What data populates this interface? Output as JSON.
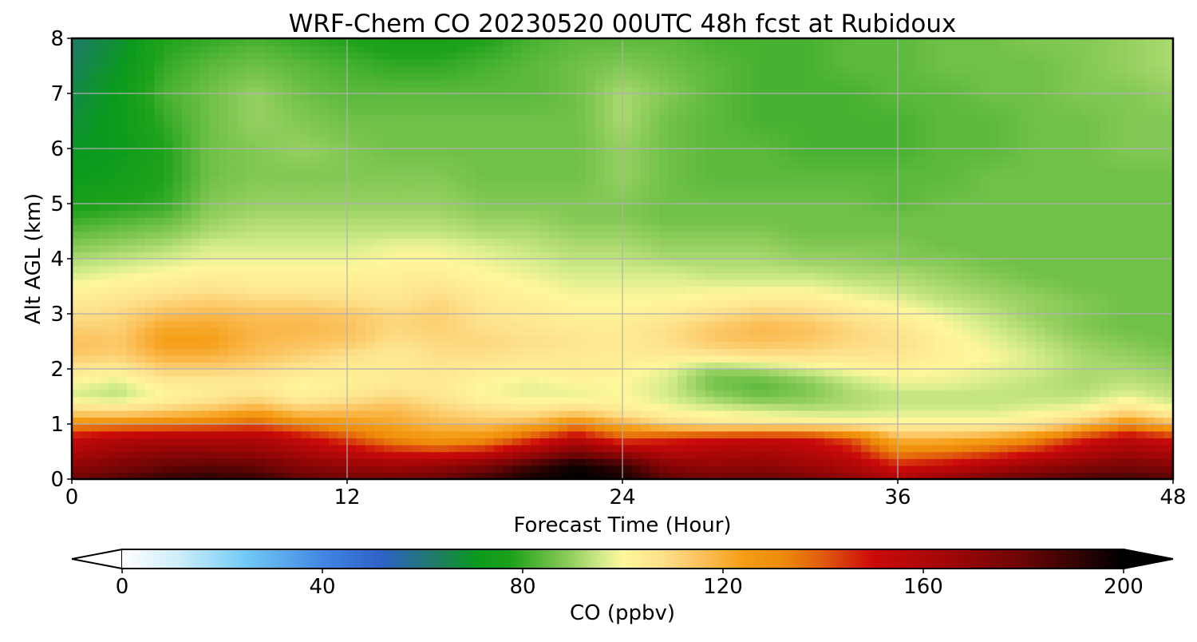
{
  "chart_data": {
    "type": "heatmap",
    "title": "WRF-Chem CO  20230520 00UTC 48h fcst at Rubidoux",
    "xlabel": "Forecast Time (Hour)",
    "ylabel": "Alt AGL (km)",
    "xlim": [
      0,
      48
    ],
    "ylim": [
      0,
      8
    ],
    "x_ticks": [
      0,
      12,
      24,
      36,
      48
    ],
    "y_ticks": [
      0,
      1,
      2,
      3,
      4,
      5,
      6,
      7,
      8
    ],
    "grid": true,
    "colorbar": {
      "label": "CO  (ppbv)",
      "range": [
        0,
        200
      ],
      "ticks": [
        0,
        40,
        80,
        120,
        160,
        200
      ],
      "extend": "both",
      "orientation": "horizontal",
      "stops": [
        {
          "v": 0,
          "c": "#ffffff"
        },
        {
          "v": 12,
          "c": "#c9ecfa"
        },
        {
          "v": 25,
          "c": "#6fc8f5"
        },
        {
          "v": 42,
          "c": "#3d7fe0"
        },
        {
          "v": 52,
          "c": "#2f62c4"
        },
        {
          "v": 62,
          "c": "#1f7a6a"
        },
        {
          "v": 71,
          "c": "#0a9a1e"
        },
        {
          "v": 78,
          "c": "#1ea21a"
        },
        {
          "v": 84,
          "c": "#5cb93c"
        },
        {
          "v": 90,
          "c": "#96d060"
        },
        {
          "v": 96,
          "c": "#d4ec8c"
        },
        {
          "v": 100,
          "c": "#fff79a"
        },
        {
          "v": 108,
          "c": "#fde08a"
        },
        {
          "v": 116,
          "c": "#fbc05a"
        },
        {
          "v": 124,
          "c": "#f59d16"
        },
        {
          "v": 132,
          "c": "#ee8a0a"
        },
        {
          "v": 140,
          "c": "#e05a0c"
        },
        {
          "v": 150,
          "c": "#cc0a0a"
        },
        {
          "v": 165,
          "c": "#a00606"
        },
        {
          "v": 180,
          "c": "#6a0505"
        },
        {
          "v": 192,
          "c": "#2a0202"
        },
        {
          "v": 200,
          "c": "#000000"
        }
      ]
    },
    "x": [
      0,
      2,
      4,
      6,
      8,
      10,
      12,
      14,
      16,
      18,
      20,
      22,
      24,
      26,
      28,
      30,
      32,
      34,
      36,
      38,
      40,
      42,
      44,
      46,
      48
    ],
    "y": [
      0,
      0.25,
      0.5,
      0.75,
      1,
      1.25,
      1.5,
      1.75,
      2,
      2.25,
      2.5,
      2.75,
      3,
      3.25,
      3.5,
      3.75,
      4,
      4.25,
      4.5,
      4.75,
      5,
      5.5,
      6,
      6.5,
      7,
      7.5,
      8
    ],
    "z": [
      [
        178,
        184,
        190,
        192,
        190,
        182,
        178,
        176,
        180,
        188,
        196,
        200,
        196,
        182,
        178,
        180,
        176,
        170,
        160,
        168,
        176,
        182,
        186,
        188,
        184
      ],
      [
        170,
        175,
        180,
        182,
        180,
        172,
        168,
        165,
        168,
        175,
        188,
        198,
        190,
        172,
        168,
        170,
        166,
        160,
        148,
        152,
        160,
        166,
        172,
        176,
        172
      ],
      [
        160,
        166,
        170,
        170,
        168,
        162,
        155,
        148,
        145,
        150,
        162,
        175,
        165,
        158,
        160,
        162,
        158,
        150,
        132,
        135,
        140,
        148,
        158,
        165,
        160
      ],
      [
        152,
        158,
        160,
        160,
        160,
        152,
        142,
        130,
        125,
        128,
        142,
        155,
        140,
        145,
        150,
        152,
        150,
        140,
        118,
        118,
        122,
        130,
        145,
        155,
        148
      ],
      [
        130,
        132,
        134,
        136,
        140,
        132,
        126,
        122,
        118,
        116,
        120,
        132,
        120,
        110,
        105,
        105,
        105,
        104,
        102,
        102,
        102,
        105,
        115,
        130,
        118
      ],
      [
        110,
        108,
        112,
        116,
        122,
        114,
        116,
        118,
        112,
        108,
        106,
        110,
        104,
        100,
        98,
        96,
        94,
        94,
        96,
        96,
        96,
        98,
        100,
        108,
        100
      ],
      [
        96,
        94,
        100,
        104,
        108,
        102,
        106,
        110,
        106,
        100,
        98,
        98,
        100,
        96,
        90,
        86,
        88,
        92,
        94,
        94,
        94,
        94,
        94,
        98,
        94
      ],
      [
        100,
        96,
        104,
        104,
        104,
        100,
        102,
        104,
        104,
        100,
        98,
        100,
        100,
        96,
        86,
        84,
        88,
        94,
        98,
        98,
        96,
        94,
        92,
        94,
        92
      ],
      [
        106,
        104,
        112,
        112,
        110,
        106,
        104,
        104,
        106,
        104,
        102,
        104,
        102,
        98,
        90,
        92,
        96,
        100,
        102,
        100,
        98,
        96,
        92,
        92,
        90
      ],
      [
        114,
        112,
        120,
        120,
        116,
        112,
        108,
        104,
        108,
        108,
        106,
        104,
        104,
        104,
        106,
        108,
        108,
        106,
        106,
        102,
        100,
        96,
        92,
        90,
        88
      ],
      [
        116,
        114,
        124,
        124,
        118,
        116,
        114,
        108,
        110,
        110,
        108,
        106,
        104,
        108,
        114,
        116,
        114,
        110,
        108,
        102,
        98,
        94,
        90,
        88,
        86
      ],
      [
        112,
        112,
        122,
        122,
        118,
        118,
        116,
        110,
        112,
        108,
        106,
        104,
        104,
        108,
        114,
        118,
        116,
        110,
        106,
        100,
        96,
        92,
        88,
        86,
        86
      ],
      [
        108,
        110,
        116,
        118,
        116,
        116,
        114,
        110,
        112,
        106,
        104,
        102,
        102,
        104,
        108,
        112,
        110,
        106,
        102,
        98,
        94,
        90,
        88,
        86,
        86
      ],
      [
        104,
        106,
        110,
        112,
        110,
        110,
        108,
        106,
        110,
        104,
        102,
        100,
        100,
        100,
        102,
        104,
        104,
        100,
        98,
        94,
        92,
        90,
        88,
        86,
        86
      ],
      [
        100,
        102,
        104,
        106,
        104,
        104,
        104,
        104,
        106,
        102,
        100,
        98,
        98,
        98,
        98,
        98,
        98,
        96,
        94,
        92,
        90,
        88,
        86,
        86,
        86
      ],
      [
        96,
        98,
        100,
        102,
        102,
        102,
        102,
        102,
        102,
        100,
        98,
        96,
        96,
        96,
        94,
        94,
        94,
        92,
        92,
        90,
        88,
        86,
        86,
        86,
        86
      ],
      [
        92,
        94,
        96,
        98,
        98,
        98,
        98,
        100,
        100,
        98,
        96,
        94,
        94,
        92,
        92,
        92,
        90,
        90,
        88,
        88,
        86,
        86,
        86,
        86,
        86
      ],
      [
        88,
        90,
        92,
        96,
        96,
        96,
        96,
        98,
        98,
        96,
        94,
        92,
        92,
        90,
        90,
        90,
        88,
        88,
        88,
        86,
        86,
        86,
        86,
        86,
        86
      ],
      [
        84,
        86,
        88,
        92,
        94,
        94,
        94,
        94,
        94,
        92,
        92,
        90,
        90,
        88,
        88,
        88,
        86,
        86,
        86,
        86,
        86,
        86,
        86,
        86,
        86
      ],
      [
        80,
        82,
        84,
        90,
        92,
        92,
        92,
        92,
        92,
        90,
        90,
        88,
        88,
        86,
        86,
        86,
        86,
        86,
        86,
        86,
        86,
        86,
        86,
        86,
        86
      ],
      [
        76,
        78,
        80,
        88,
        90,
        90,
        90,
        90,
        90,
        88,
        88,
        88,
        88,
        86,
        86,
        86,
        86,
        86,
        84,
        86,
        86,
        86,
        86,
        86,
        86
      ],
      [
        72,
        74,
        78,
        86,
        88,
        88,
        88,
        88,
        88,
        86,
        86,
        86,
        90,
        86,
        84,
        84,
        84,
        84,
        84,
        84,
        86,
        86,
        86,
        86,
        86
      ],
      [
        70,
        72,
        78,
        86,
        88,
        90,
        88,
        86,
        86,
        86,
        86,
        86,
        90,
        86,
        84,
        84,
        82,
        82,
        82,
        84,
        84,
        86,
        86,
        88,
        88
      ],
      [
        68,
        72,
        80,
        86,
        90,
        88,
        86,
        86,
        86,
        86,
        86,
        86,
        92,
        86,
        84,
        82,
        82,
        82,
        82,
        84,
        84,
        86,
        86,
        88,
        88
      ],
      [
        66,
        72,
        82,
        86,
        90,
        86,
        84,
        84,
        84,
        84,
        84,
        86,
        92,
        88,
        84,
        82,
        82,
        82,
        84,
        84,
        86,
        86,
        88,
        88,
        90
      ],
      [
        64,
        70,
        80,
        84,
        86,
        84,
        82,
        80,
        80,
        82,
        84,
        86,
        88,
        86,
        84,
        82,
        82,
        84,
        84,
        86,
        86,
        86,
        88,
        90,
        92
      ],
      [
        62,
        68,
        78,
        80,
        82,
        80,
        78,
        76,
        76,
        78,
        82,
        84,
        84,
        84,
        82,
        82,
        82,
        84,
        84,
        86,
        86,
        88,
        88,
        90,
        92
      ]
    ]
  }
}
